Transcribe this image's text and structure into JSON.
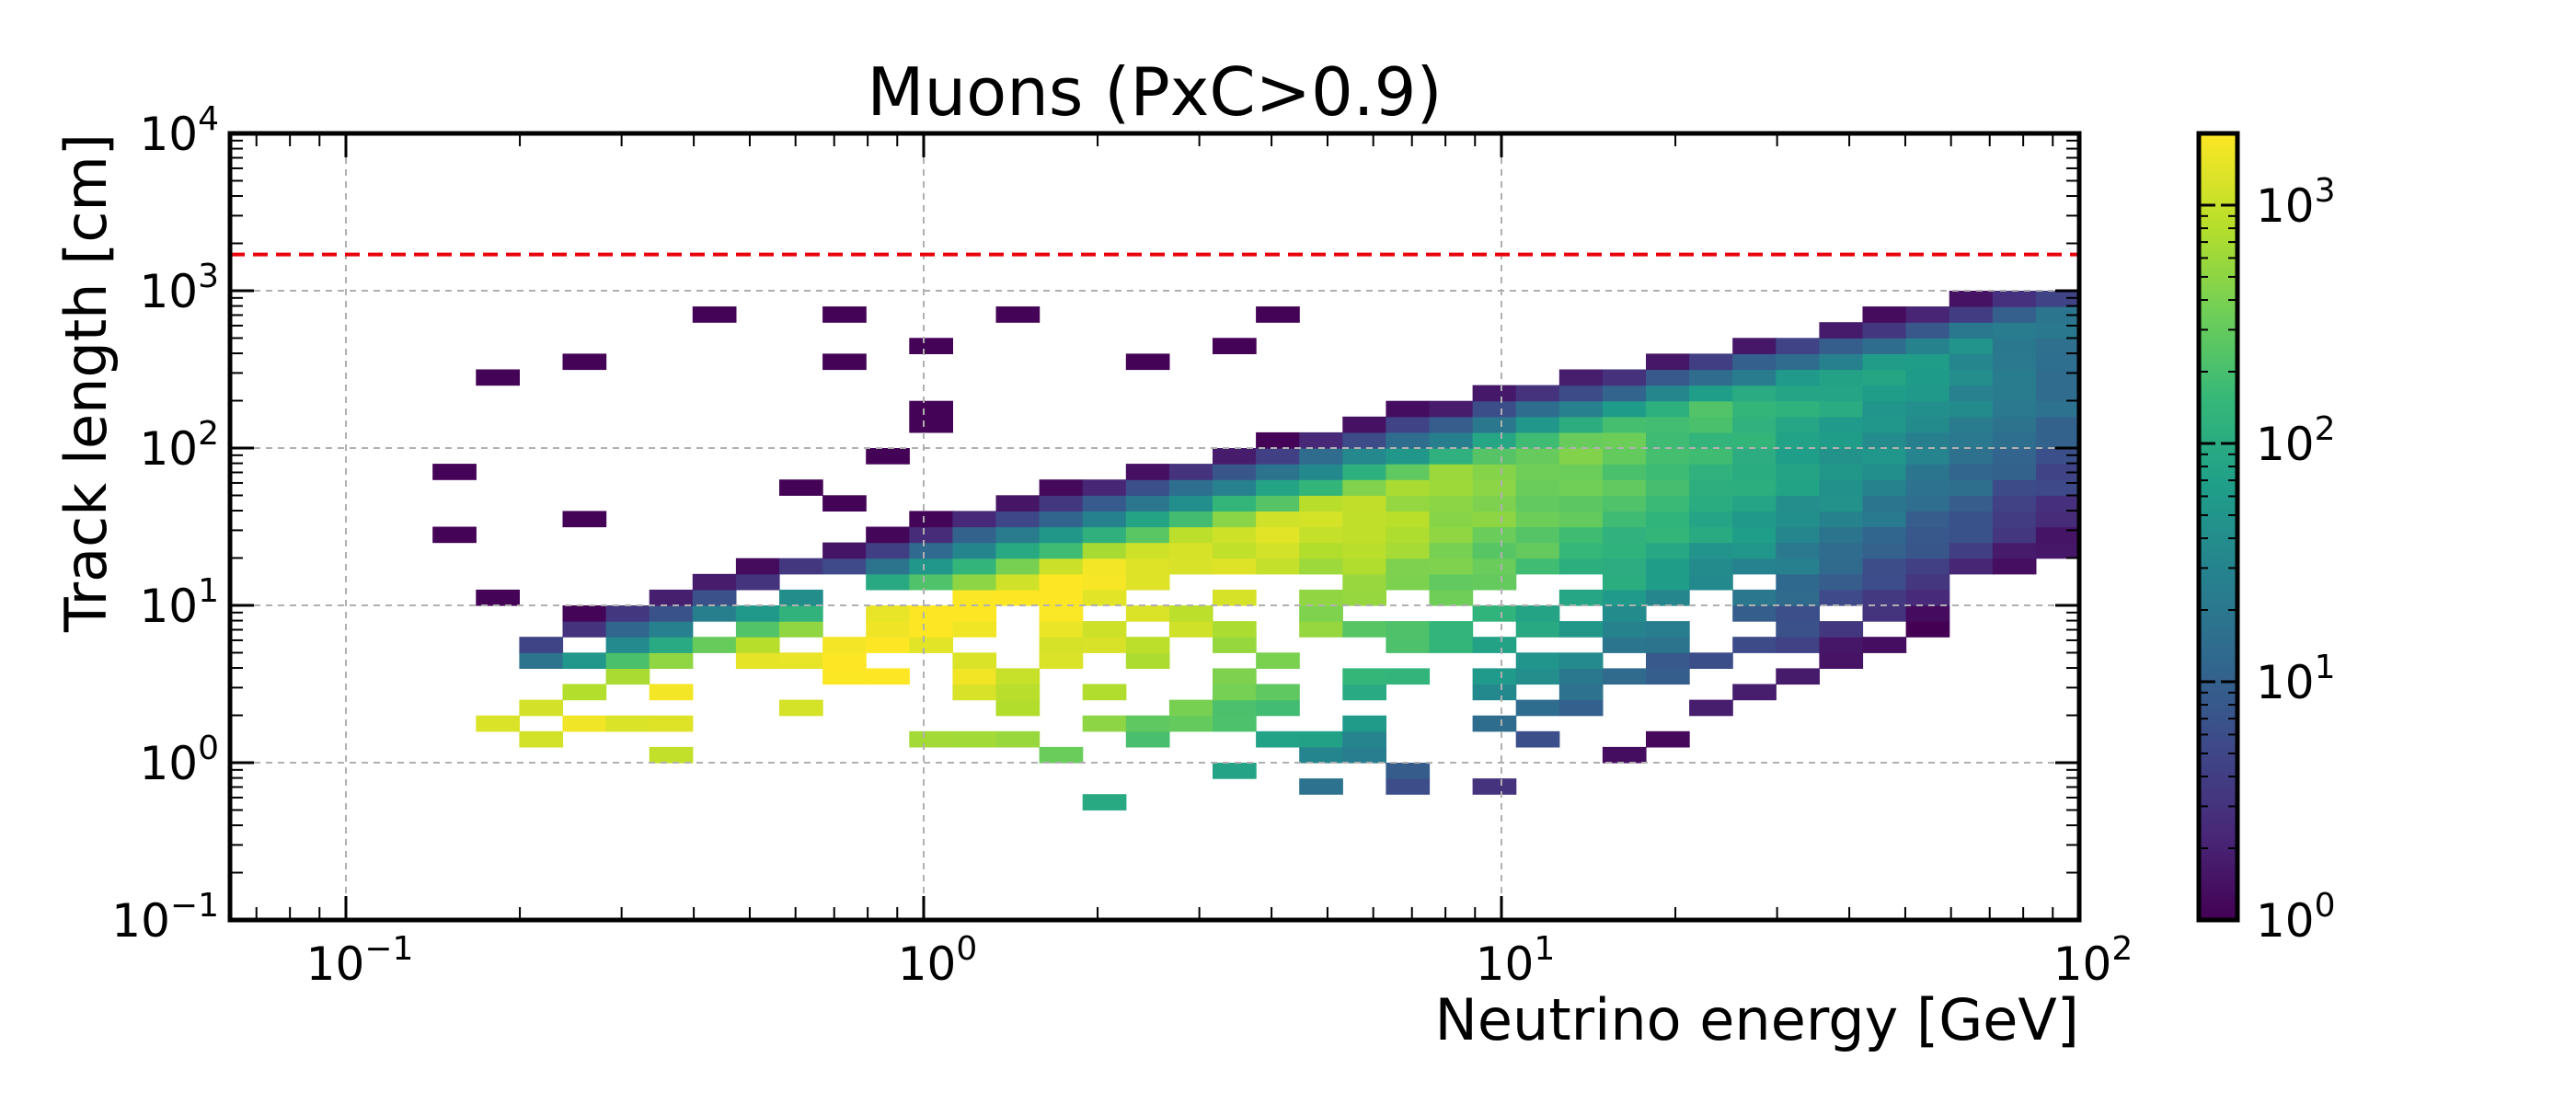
{
  "chart_data": {
    "type": "heatmap",
    "title": "Muons (PxC>0.9)",
    "xlabel": "Neutrino energy [GeV]",
    "ylabel": "Track length [cm]",
    "x_scale": "log",
    "y_scale": "log",
    "xlim": [
      0.063,
      100
    ],
    "ylim": [
      0.1,
      10000
    ],
    "x_ticks": [
      {
        "base": "10",
        "exp": "−1"
      },
      {
        "base": "10",
        "exp": "0"
      },
      {
        "base": "10",
        "exp": "1"
      },
      {
        "base": "10",
        "exp": "2"
      }
    ],
    "y_ticks": [
      {
        "base": "10",
        "exp": "−1"
      },
      {
        "base": "10",
        "exp": "0"
      },
      {
        "base": "10",
        "exp": "1"
      },
      {
        "base": "10",
        "exp": "2"
      },
      {
        "base": "10",
        "exp": "3"
      },
      {
        "base": "10",
        "exp": "4"
      }
    ],
    "grid": true,
    "colormap": "viridis",
    "colorbar": {
      "scale": "log",
      "range": [
        1,
        2000
      ],
      "ticks": [
        {
          "base": "10",
          "exp": "0"
        },
        {
          "base": "10",
          "exp": "1"
        },
        {
          "base": "10",
          "exp": "2"
        },
        {
          "base": "10",
          "exp": "3"
        }
      ]
    },
    "reference_line": {
      "y": 1700,
      "color": "#e8000b",
      "style": "dashed"
    },
    "density_model": {
      "ridge": "log10(track_length) ≈ 0.5 + 0.95·(log10(E)+0.5), saturating near 1300 cm",
      "peak_counts": 2000,
      "peak_energy_GeV": 1.0,
      "min_energy_GeV": 0.14
    }
  },
  "colors": {
    "viridis": [
      "#440154",
      "#482878",
      "#3e4989",
      "#31688e",
      "#26828e",
      "#1f9e89",
      "#35b779",
      "#6ece58",
      "#b5de2b",
      "#fde725"
    ],
    "axis": "#000000",
    "grid": "#b0b0b0"
  }
}
